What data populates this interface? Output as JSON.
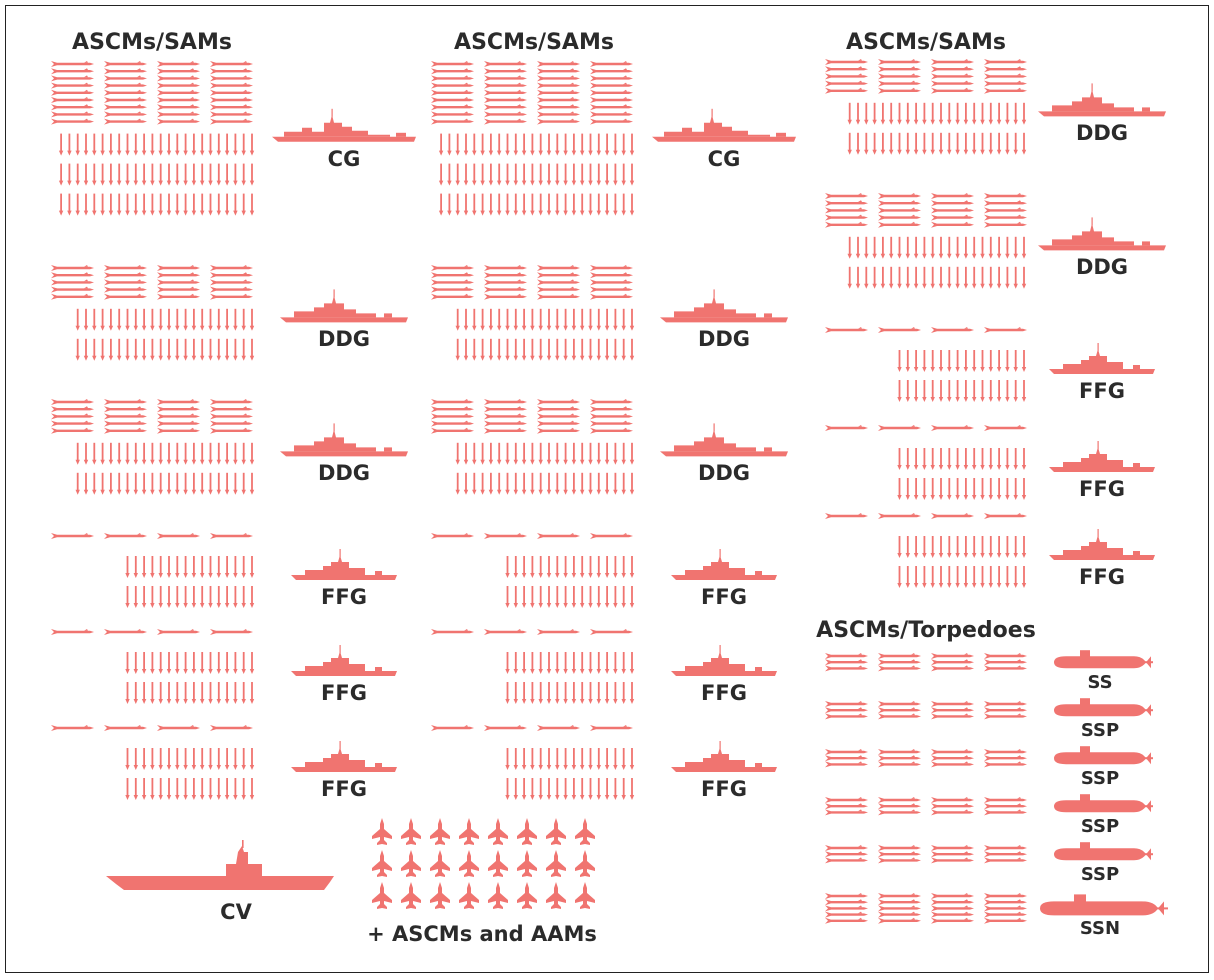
{
  "figure": {
    "accent_color": "#f07470",
    "text_color": "#2b2b2b",
    "columns": [
      {
        "header": "ASCMs/SAMs",
        "groups": [
          {
            "ship": "CG",
            "ship_type": "cruiser",
            "missile_rows": 9,
            "vls_rows": 3,
            "vls_cols": 24
          },
          {
            "ship": "DDG",
            "ship_type": "destroyer",
            "missile_rows": 5,
            "vls_rows": 2,
            "vls_cols": 22
          },
          {
            "ship": "DDG",
            "ship_type": "destroyer",
            "missile_rows": 5,
            "vls_rows": 2,
            "vls_cols": 22
          },
          {
            "ship": "FFG",
            "ship_type": "frigate",
            "missile_rows": 1,
            "vls_rows": 2,
            "vls_cols": 16
          },
          {
            "ship": "FFG",
            "ship_type": "frigate",
            "missile_rows": 1,
            "vls_rows": 2,
            "vls_cols": 16
          },
          {
            "ship": "FFG",
            "ship_type": "frigate",
            "missile_rows": 1,
            "vls_rows": 2,
            "vls_cols": 16
          }
        ]
      },
      {
        "header": "ASCMs/SAMs",
        "groups": [
          {
            "ship": "CG",
            "ship_type": "cruiser",
            "missile_rows": 9,
            "vls_rows": 3,
            "vls_cols": 24
          },
          {
            "ship": "DDG",
            "ship_type": "destroyer",
            "missile_rows": 5,
            "vls_rows": 2,
            "vls_cols": 22
          },
          {
            "ship": "DDG",
            "ship_type": "destroyer",
            "missile_rows": 5,
            "vls_rows": 2,
            "vls_cols": 22
          },
          {
            "ship": "FFG",
            "ship_type": "frigate",
            "missile_rows": 1,
            "vls_rows": 2,
            "vls_cols": 16
          },
          {
            "ship": "FFG",
            "ship_type": "frigate",
            "missile_rows": 1,
            "vls_rows": 2,
            "vls_cols": 16
          },
          {
            "ship": "FFG",
            "ship_type": "frigate",
            "missile_rows": 1,
            "vls_rows": 2,
            "vls_cols": 16
          }
        ]
      },
      {
        "header": "ASCMs/SAMs",
        "groups": [
          {
            "ship": "DDG",
            "ship_type": "destroyer",
            "missile_rows": 5,
            "vls_rows": 2,
            "vls_cols": 22
          },
          {
            "ship": "DDG",
            "ship_type": "destroyer",
            "missile_rows": 5,
            "vls_rows": 2,
            "vls_cols": 22
          },
          {
            "ship": "FFG",
            "ship_type": "frigate",
            "missile_rows": 1,
            "vls_rows": 2,
            "vls_cols": 16
          },
          {
            "ship": "FFG",
            "ship_type": "frigate",
            "missile_rows": 1,
            "vls_rows": 2,
            "vls_cols": 16
          },
          {
            "ship": "FFG",
            "ship_type": "frigate",
            "missile_rows": 1,
            "vls_rows": 2,
            "vls_cols": 16
          }
        ]
      }
    ],
    "submarines": {
      "header": "ASCMs/Torpedoes",
      "boats": [
        {
          "label": "SS",
          "missile_rows": 3
        },
        {
          "label": "SSP",
          "missile_rows": 3
        },
        {
          "label": "SSP",
          "missile_rows": 3
        },
        {
          "label": "SSP",
          "missile_rows": 3
        },
        {
          "label": "SSP",
          "missile_rows": 3
        },
        {
          "label": "SSN",
          "missile_rows": 5
        }
      ]
    },
    "carrier": {
      "label": "CV"
    },
    "air_wing": {
      "fighter_rows": 3,
      "fighter_cols": 8,
      "label": "+ ASCMs and AAMs"
    }
  }
}
